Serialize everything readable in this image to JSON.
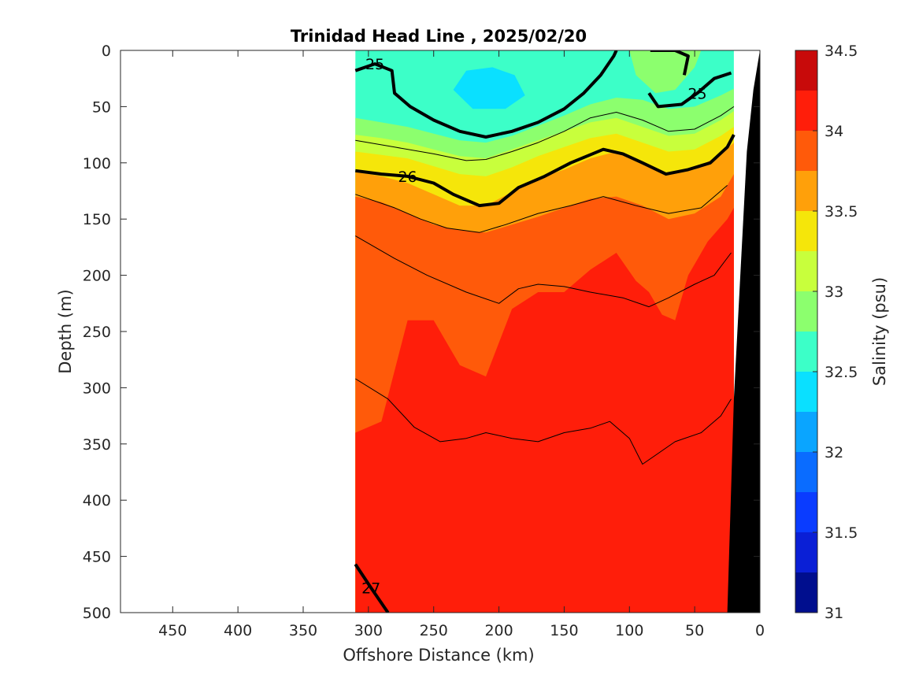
{
  "chart_data": {
    "type": "heatmap",
    "subtype": "filled-contour-section",
    "title": "Trinidad Head Line , 2025/02/20",
    "xlabel": "Offshore Distance (km)",
    "ylabel": "Depth (m)",
    "xlim": [
      490,
      0
    ],
    "x_reversed": true,
    "ylim": [
      0,
      500
    ],
    "y_reversed": true,
    "xticks": [
      450,
      400,
      350,
      300,
      250,
      200,
      150,
      100,
      50,
      0
    ],
    "yticks": [
      0,
      50,
      100,
      150,
      200,
      250,
      300,
      350,
      400,
      450,
      500
    ],
    "data_extent_km": [
      310,
      20
    ],
    "colorbar": {
      "label": "Salinity (psu)",
      "min": 31,
      "max": 34.5,
      "step": 0.25,
      "ticks": [
        31,
        31.5,
        32,
        32.5,
        33,
        33.5,
        34,
        34.5
      ],
      "colors": [
        "#000e8e",
        "#0a1fd6",
        "#0a3cff",
        "#0a6cff",
        "#0aa5ff",
        "#0ae0ff",
        "#3cffc8",
        "#8cff6e",
        "#c8ff3c",
        "#f5e60a",
        "#ffa00a",
        "#ff5a0a",
        "#ff1e0a",
        "#c80a0a"
      ]
    },
    "salinity_layers": [
      {
        "salinity": "34.0-34.25",
        "top_depth_m": [
          [
            310,
            340
          ],
          [
            290,
            330
          ],
          [
            270,
            240
          ],
          [
            250,
            240
          ],
          [
            230,
            280
          ],
          [
            210,
            290
          ],
          [
            190,
            230
          ],
          [
            170,
            215
          ],
          [
            150,
            215
          ],
          [
            130,
            195
          ],
          [
            110,
            180
          ],
          [
            95,
            205
          ],
          [
            85,
            215
          ],
          [
            75,
            235
          ],
          [
            65,
            240
          ],
          [
            55,
            200
          ],
          [
            40,
            170
          ],
          [
            25,
            150
          ],
          [
            20,
            140
          ]
        ]
      },
      {
        "salinity": "33.75-34.0",
        "top_depth_m": [
          [
            310,
            130
          ],
          [
            290,
            135
          ],
          [
            270,
            145
          ],
          [
            250,
            155
          ],
          [
            230,
            160
          ],
          [
            210,
            162
          ],
          [
            190,
            155
          ],
          [
            170,
            148
          ],
          [
            150,
            140
          ],
          [
            130,
            132
          ],
          [
            110,
            130
          ],
          [
            90,
            138
          ],
          [
            70,
            150
          ],
          [
            50,
            145
          ],
          [
            30,
            130
          ],
          [
            20,
            110
          ]
        ]
      },
      {
        "salinity": "33.5-33.75",
        "top_depth_m": [
          [
            310,
            108
          ],
          [
            290,
            112
          ],
          [
            270,
            118
          ],
          [
            250,
            128
          ],
          [
            230,
            138
          ],
          [
            210,
            138
          ],
          [
            190,
            126
          ],
          [
            170,
            114
          ],
          [
            150,
            106
          ],
          [
            130,
            96
          ],
          [
            110,
            90
          ],
          [
            90,
            100
          ],
          [
            70,
            110
          ],
          [
            50,
            106
          ],
          [
            30,
            92
          ],
          [
            20,
            82
          ]
        ]
      },
      {
        "salinity": "33.25-33.5",
        "top_depth_m": [
          [
            310,
            90
          ],
          [
            290,
            93
          ],
          [
            270,
            96
          ],
          [
            250,
            103
          ],
          [
            230,
            110
          ],
          [
            210,
            112
          ],
          [
            190,
            104
          ],
          [
            170,
            94
          ],
          [
            150,
            86
          ],
          [
            130,
            78
          ],
          [
            110,
            74
          ],
          [
            90,
            82
          ],
          [
            70,
            90
          ],
          [
            50,
            88
          ],
          [
            30,
            76
          ],
          [
            20,
            68
          ]
        ]
      },
      {
        "salinity": "33.0-33.25",
        "top_depth_m": [
          [
            310,
            75
          ],
          [
            290,
            78
          ],
          [
            270,
            82
          ],
          [
            250,
            88
          ],
          [
            230,
            94
          ],
          [
            210,
            96
          ],
          [
            190,
            88
          ],
          [
            170,
            80
          ],
          [
            150,
            72
          ],
          [
            130,
            64
          ],
          [
            110,
            60
          ],
          [
            90,
            68
          ],
          [
            70,
            76
          ],
          [
            50,
            74
          ],
          [
            30,
            62
          ],
          [
            20,
            54
          ]
        ]
      },
      {
        "salinity": "32.75-33.0",
        "top_depth_m": [
          [
            310,
            60
          ],
          [
            290,
            64
          ],
          [
            270,
            68
          ],
          [
            250,
            74
          ],
          [
            230,
            80
          ],
          [
            210,
            82
          ],
          [
            190,
            76
          ],
          [
            170,
            67
          ],
          [
            150,
            58
          ],
          [
            130,
            48
          ],
          [
            110,
            42
          ],
          [
            90,
            44
          ],
          [
            70,
            52
          ],
          [
            50,
            50
          ],
          [
            30,
            40
          ],
          [
            20,
            34
          ]
        ]
      },
      {
        "salinity": "32.5-32.75",
        "top_depth_m": [
          [
            310,
            0
          ],
          [
            20,
            0
          ]
        ]
      }
    ],
    "patches": [
      {
        "salinity": "32.25-32.5",
        "outline_km_m": [
          [
            235,
            35
          ],
          [
            225,
            18
          ],
          [
            205,
            15
          ],
          [
            188,
            22
          ],
          [
            180,
            40
          ],
          [
            195,
            52
          ],
          [
            220,
            52
          ]
        ]
      },
      {
        "salinity": "32.75-33.0",
        "outline_km_m": [
          [
            120,
            0
          ],
          [
            100,
            0
          ],
          [
            95,
            22
          ],
          [
            80,
            38
          ],
          [
            65,
            35
          ],
          [
            50,
            15
          ],
          [
            45,
            0
          ]
        ]
      }
    ],
    "density_contours": [
      {
        "sigma": 25,
        "bold": true,
        "label": "25",
        "points": [
          [
            310,
            18
          ],
          [
            295,
            12
          ],
          [
            282,
            18
          ],
          [
            280,
            38
          ],
          [
            268,
            50
          ],
          [
            250,
            62
          ],
          [
            230,
            72
          ],
          [
            210,
            77
          ],
          [
            190,
            72
          ],
          [
            170,
            64
          ],
          [
            150,
            52
          ],
          [
            135,
            38
          ],
          [
            122,
            22
          ],
          [
            112,
            5
          ],
          [
            110,
            0
          ]
        ]
      },
      {
        "sigma": 25,
        "bold": true,
        "label": "25",
        "points": [
          [
            85,
            38
          ],
          [
            78,
            50
          ],
          [
            60,
            48
          ],
          [
            48,
            38
          ],
          [
            35,
            25
          ],
          [
            22,
            20
          ]
        ]
      },
      {
        "sigma": 25,
        "bold": true,
        "label": "",
        "points": [
          [
            84,
            0
          ],
          [
            65,
            0
          ],
          [
            55,
            5
          ],
          [
            58,
            22
          ]
        ]
      },
      {
        "sigma": 26,
        "bold": true,
        "label": "26",
        "points": [
          [
            310,
            107
          ],
          [
            290,
            110
          ],
          [
            270,
            112
          ],
          [
            250,
            118
          ],
          [
            235,
            128
          ],
          [
            215,
            138
          ],
          [
            200,
            136
          ],
          [
            185,
            122
          ],
          [
            165,
            112
          ],
          [
            145,
            100
          ],
          [
            120,
            88
          ],
          [
            105,
            92
          ],
          [
            90,
            100
          ],
          [
            72,
            110
          ],
          [
            55,
            106
          ],
          [
            38,
            100
          ],
          [
            25,
            86
          ],
          [
            20,
            75
          ]
        ]
      },
      {
        "sigma": 27,
        "bold": true,
        "label": "27",
        "points": [
          [
            310,
            457
          ],
          [
            298,
            478
          ],
          [
            285,
            500
          ]
        ]
      },
      {
        "sigma": 25.5,
        "bold": false,
        "label": "",
        "points": [
          [
            310,
            80
          ],
          [
            280,
            86
          ],
          [
            250,
            92
          ],
          [
            225,
            98
          ],
          [
            210,
            97
          ],
          [
            190,
            90
          ],
          [
            170,
            82
          ],
          [
            150,
            72
          ],
          [
            130,
            60
          ],
          [
            110,
            55
          ],
          [
            90,
            62
          ],
          [
            70,
            72
          ],
          [
            50,
            70
          ],
          [
            30,
            58
          ],
          [
            20,
            50
          ]
        ]
      },
      {
        "sigma": 26.5,
        "bold": false,
        "label": "",
        "points": [
          [
            310,
            128
          ],
          [
            280,
            140
          ],
          [
            260,
            150
          ],
          [
            240,
            158
          ],
          [
            215,
            162
          ],
          [
            195,
            155
          ],
          [
            170,
            145
          ],
          [
            145,
            138
          ],
          [
            120,
            130
          ],
          [
            95,
            138
          ],
          [
            70,
            145
          ],
          [
            45,
            140
          ],
          [
            25,
            120
          ]
        ]
      },
      {
        "sigma": 26.7,
        "bold": false,
        "label": "",
        "points": [
          [
            310,
            165
          ],
          [
            280,
            185
          ],
          [
            255,
            200
          ],
          [
            225,
            215
          ],
          [
            200,
            225
          ],
          [
            185,
            212
          ],
          [
            170,
            208
          ],
          [
            150,
            210
          ],
          [
            130,
            215
          ],
          [
            105,
            220
          ],
          [
            85,
            228
          ],
          [
            70,
            220
          ],
          [
            50,
            208
          ],
          [
            35,
            200
          ],
          [
            22,
            180
          ]
        ]
      },
      {
        "sigma": 26.9,
        "bold": false,
        "label": "",
        "points": [
          [
            310,
            292
          ],
          [
            285,
            310
          ],
          [
            265,
            335
          ],
          [
            245,
            348
          ],
          [
            225,
            345
          ],
          [
            210,
            340
          ],
          [
            190,
            345
          ],
          [
            170,
            348
          ],
          [
            150,
            340
          ],
          [
            130,
            336
          ],
          [
            115,
            330
          ],
          [
            100,
            345
          ],
          [
            90,
            368
          ],
          [
            80,
            360
          ],
          [
            65,
            348
          ],
          [
            45,
            340
          ],
          [
            30,
            325
          ],
          [
            22,
            310
          ]
        ]
      }
    ],
    "bathymetry": {
      "color": "#000000",
      "seafloor_km_m": [
        [
          0,
          0
        ],
        [
          5,
          35
        ],
        [
          10,
          90
        ],
        [
          15,
          200
        ],
        [
          20,
          310
        ],
        [
          25,
          500
        ]
      ]
    }
  }
}
